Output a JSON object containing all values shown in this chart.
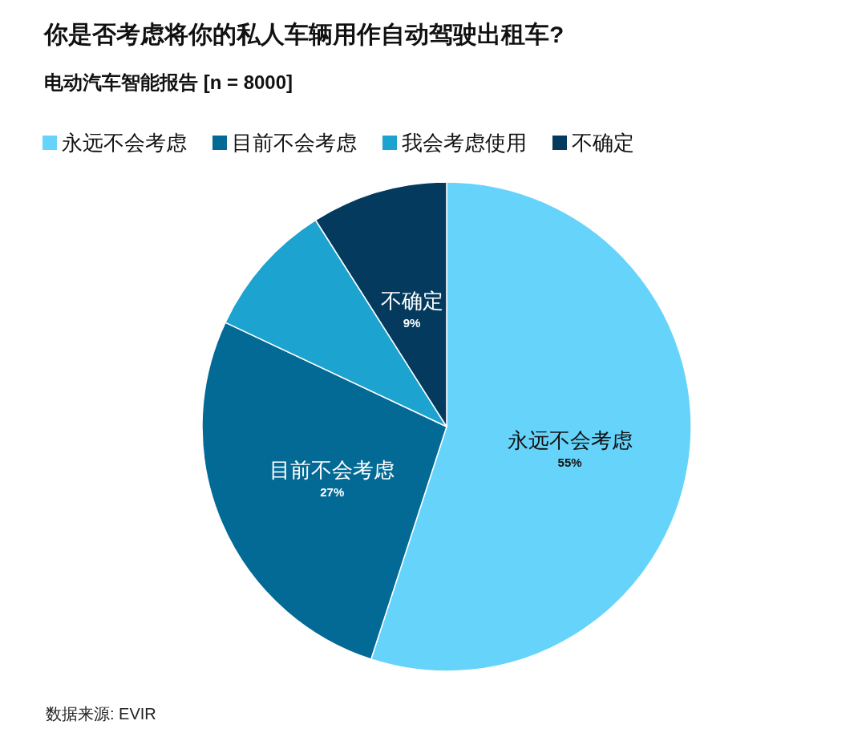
{
  "chart_data": {
    "type": "pie",
    "title": "你是否考虑将你的私人车辆用作自动驾驶出租车?",
    "subtitle": "电动汽车智能报告 [n = 8000]",
    "categories": [
      "永远不会考虑",
      "目前不会考虑",
      "我会考虑使用",
      "不确定"
    ],
    "values": [
      55,
      27,
      9,
      9
    ],
    "value_labels": [
      "55%",
      "27%",
      null,
      "9%"
    ],
    "colors": [
      "#66d4fa",
      "#036a96",
      "#1ca3d0",
      "#043a5e"
    ],
    "legend": "top left",
    "annotations": [
      "数据来源: EVIR"
    ]
  }
}
